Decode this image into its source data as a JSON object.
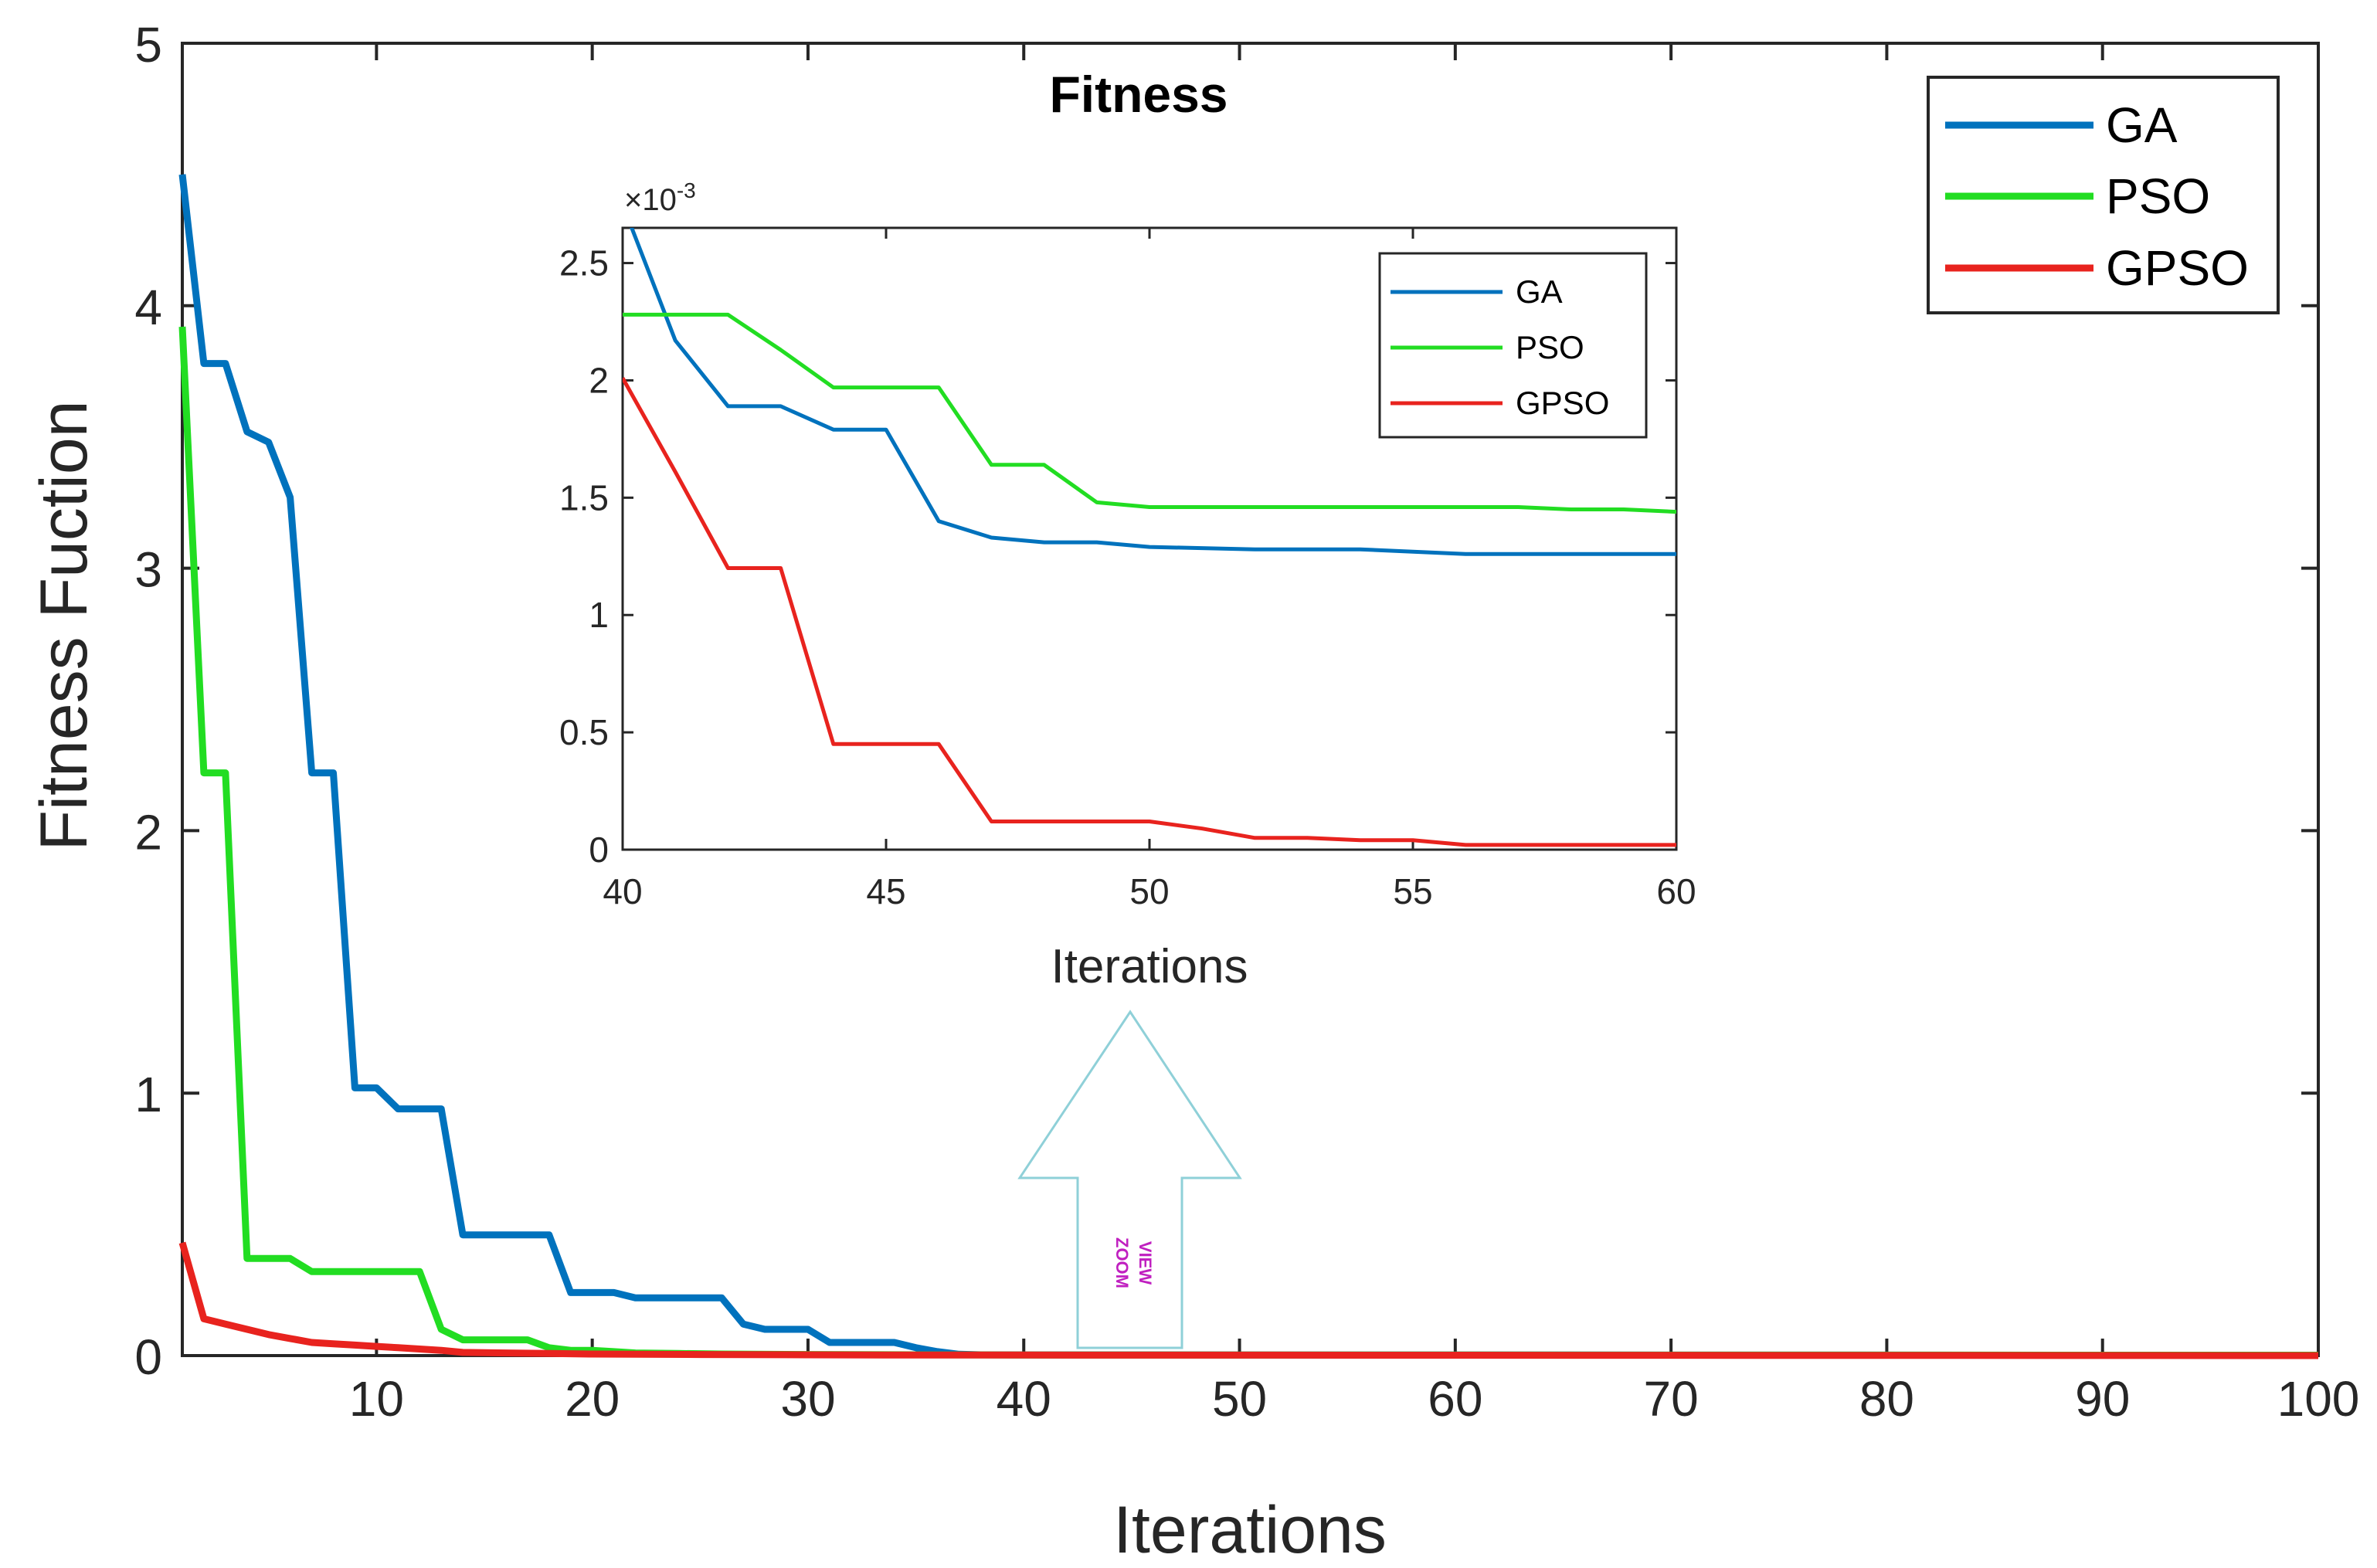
{
  "colors": {
    "GA": "#0072bd",
    "PSO": "#22dd22",
    "GPSO": "#e8231e",
    "axis": "#262626",
    "arrow": "#8fd0d8",
    "arrow_text": "#c020c0"
  },
  "chart_data": [
    {
      "type": "line",
      "title": "Fitness",
      "xlabel": "Iterations",
      "ylabel": "Fitness Fuction",
      "xlim": [
        1,
        100
      ],
      "ylim": [
        0,
        5
      ],
      "xticks": [
        10,
        20,
        30,
        40,
        50,
        60,
        70,
        80,
        90,
        100
      ],
      "yticks": [
        0,
        1,
        2,
        3,
        4,
        5
      ],
      "legend_position": "top-right",
      "series": [
        {
          "name": "GA",
          "points": [
            [
              1,
              4.5
            ],
            [
              2,
              3.78
            ],
            [
              3,
              3.78
            ],
            [
              4,
              3.52
            ],
            [
              5,
              3.48
            ],
            [
              6,
              3.27
            ],
            [
              7,
              2.22
            ],
            [
              8,
              2.22
            ],
            [
              9,
              1.02
            ],
            [
              10,
              1.02
            ],
            [
              11,
              0.94
            ],
            [
              12,
              0.94
            ],
            [
              13,
              0.94
            ],
            [
              14,
              0.46
            ],
            [
              15,
              0.46
            ],
            [
              16,
              0.46
            ],
            [
              17,
              0.46
            ],
            [
              18,
              0.46
            ],
            [
              19,
              0.24
            ],
            [
              20,
              0.24
            ],
            [
              21,
              0.24
            ],
            [
              22,
              0.22
            ],
            [
              23,
              0.22
            ],
            [
              24,
              0.22
            ],
            [
              25,
              0.22
            ],
            [
              26,
              0.22
            ],
            [
              27,
              0.12
            ],
            [
              28,
              0.1
            ],
            [
              29,
              0.1
            ],
            [
              30,
              0.1
            ],
            [
              31,
              0.05
            ],
            [
              32,
              0.05
            ],
            [
              33,
              0.05
            ],
            [
              34,
              0.05
            ],
            [
              35,
              0.03
            ],
            [
              36,
              0.015
            ],
            [
              37,
              0.005
            ],
            [
              38,
              0.003
            ],
            [
              40,
              0.0027
            ],
            [
              100,
              0.0012
            ]
          ]
        },
        {
          "name": "PSO",
          "points": [
            [
              1,
              3.92
            ],
            [
              2,
              2.22
            ],
            [
              3,
              2.22
            ],
            [
              4,
              0.37
            ],
            [
              5,
              0.37
            ],
            [
              6,
              0.37
            ],
            [
              7,
              0.32
            ],
            [
              8,
              0.32
            ],
            [
              9,
              0.32
            ],
            [
              10,
              0.32
            ],
            [
              11,
              0.32
            ],
            [
              12,
              0.32
            ],
            [
              13,
              0.1
            ],
            [
              14,
              0.06
            ],
            [
              15,
              0.06
            ],
            [
              16,
              0.06
            ],
            [
              17,
              0.06
            ],
            [
              18,
              0.03
            ],
            [
              19,
              0.02
            ],
            [
              20,
              0.02
            ],
            [
              21,
              0.015
            ],
            [
              22,
              0.01
            ],
            [
              24,
              0.008
            ],
            [
              26,
              0.006
            ],
            [
              30,
              0.004
            ],
            [
              35,
              0.003
            ],
            [
              40,
              0.0023
            ],
            [
              100,
              0.0014
            ]
          ]
        },
        {
          "name": "GPSO",
          "points": [
            [
              1,
              0.43
            ],
            [
              2,
              0.14
            ],
            [
              3,
              0.12
            ],
            [
              4,
              0.1
            ],
            [
              5,
              0.08
            ],
            [
              6,
              0.065
            ],
            [
              7,
              0.05
            ],
            [
              8,
              0.045
            ],
            [
              9,
              0.04
            ],
            [
              10,
              0.035
            ],
            [
              11,
              0.03
            ],
            [
              12,
              0.025
            ],
            [
              13,
              0.02
            ],
            [
              14,
              0.012
            ],
            [
              16,
              0.01
            ],
            [
              18,
              0.008
            ],
            [
              20,
              0.006
            ],
            [
              25,
              0.004
            ],
            [
              30,
              0.003
            ],
            [
              35,
              0.002
            ],
            [
              40,
              0.002
            ],
            [
              100,
              0.0
            ]
          ]
        }
      ],
      "annotation": {
        "type": "arrow",
        "text_line1": "ZOOM",
        "text_line2": "VIEW",
        "x": 45,
        "y_from": 0,
        "y_to": 1.3
      }
    },
    {
      "type": "line",
      "title": "",
      "xlabel": "Iterations",
      "ylabel": "",
      "xlim": [
        40,
        60
      ],
      "ylim": [
        0,
        0.00265
      ],
      "scale_label_base": "×10",
      "scale_label_exp": "-3",
      "xticks": [
        40,
        45,
        50,
        55,
        60
      ],
      "xtick_labels": [
        "40",
        "45",
        "50",
        "55",
        "60"
      ],
      "yticks": [
        0,
        0.5,
        1,
        1.5,
        2,
        2.5
      ],
      "ytick_labels": [
        "0",
        "0.5",
        "1",
        "1.5",
        "2",
        "2.5"
      ],
      "units_multiplier": 0.001,
      "legend_position": "top-right",
      "series": [
        {
          "name": "GA",
          "points": [
            [
              40,
              2.75
            ],
            [
              41,
              2.17
            ],
            [
              42,
              1.89
            ],
            [
              43,
              1.89
            ],
            [
              44,
              1.79
            ],
            [
              45,
              1.79
            ],
            [
              46,
              1.4
            ],
            [
              47,
              1.33
            ],
            [
              48,
              1.31
            ],
            [
              49,
              1.31
            ],
            [
              50,
              1.29
            ],
            [
              52,
              1.28
            ],
            [
              54,
              1.28
            ],
            [
              55,
              1.27
            ],
            [
              56,
              1.26
            ],
            [
              58,
              1.26
            ],
            [
              60,
              1.26
            ]
          ]
        },
        {
          "name": "PSO",
          "points": [
            [
              40,
              2.28
            ],
            [
              42,
              2.28
            ],
            [
              43,
              2.13
            ],
            [
              44,
              1.97
            ],
            [
              45,
              1.97
            ],
            [
              46,
              1.97
            ],
            [
              47,
              1.64
            ],
            [
              48,
              1.64
            ],
            [
              49,
              1.48
            ],
            [
              50,
              1.46
            ],
            [
              52,
              1.46
            ],
            [
              55,
              1.46
            ],
            [
              57,
              1.46
            ],
            [
              58,
              1.45
            ],
            [
              59,
              1.45
            ],
            [
              60,
              1.44
            ]
          ]
        },
        {
          "name": "GPSO",
          "points": [
            [
              40,
              2.01
            ],
            [
              41,
              1.61
            ],
            [
              42,
              1.2
            ],
            [
              43,
              1.2
            ],
            [
              44,
              0.45
            ],
            [
              45,
              0.45
            ],
            [
              46,
              0.45
            ],
            [
              47,
              0.12
            ],
            [
              48,
              0.12
            ],
            [
              49,
              0.12
            ],
            [
              50,
              0.12
            ],
            [
              51,
              0.09
            ],
            [
              52,
              0.05
            ],
            [
              53,
              0.05
            ],
            [
              54,
              0.04
            ],
            [
              55,
              0.04
            ],
            [
              56,
              0.02
            ],
            [
              58,
              0.02
            ],
            [
              60,
              0.02
            ]
          ]
        }
      ]
    }
  ]
}
